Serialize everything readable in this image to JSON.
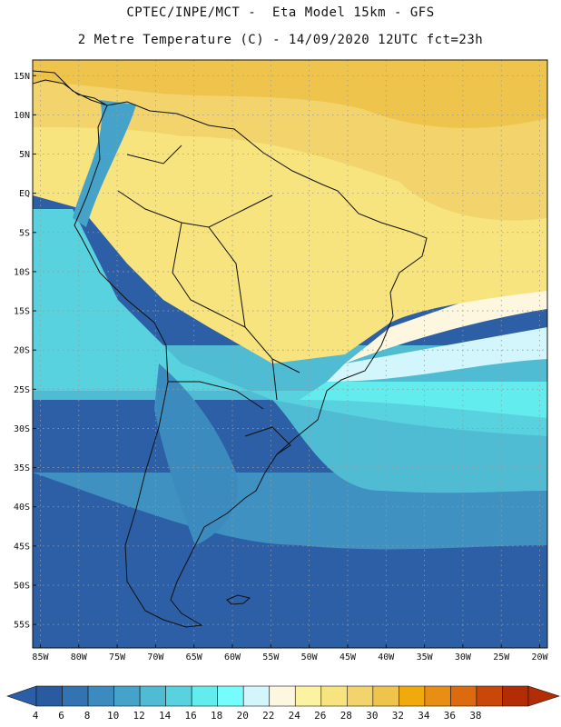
{
  "header": {
    "title": "CPTEC/INPE/MCT -  Eta Model 15km - GFS",
    "subtitle": "2 Metre Temperature (C) - 14/09/2020 12UTC fct=23h"
  },
  "map": {
    "lat_range": [
      -58,
      17
    ],
    "lon_range": [
      -86,
      -19
    ],
    "lat_ticks": [
      {
        "value": 15,
        "label": "15N"
      },
      {
        "value": 10,
        "label": "10N"
      },
      {
        "value": 5,
        "label": "5N"
      },
      {
        "value": 0,
        "label": "EQ"
      },
      {
        "value": -5,
        "label": "5S"
      },
      {
        "value": -10,
        "label": "10S"
      },
      {
        "value": -15,
        "label": "15S"
      },
      {
        "value": -20,
        "label": "20S"
      },
      {
        "value": -25,
        "label": "25S"
      },
      {
        "value": -30,
        "label": "30S"
      },
      {
        "value": -35,
        "label": "35S"
      },
      {
        "value": -40,
        "label": "40S"
      },
      {
        "value": -45,
        "label": "45S"
      },
      {
        "value": -50,
        "label": "50S"
      },
      {
        "value": -55,
        "label": "55S"
      }
    ],
    "lon_ticks": [
      {
        "value": -85,
        "label": "85W"
      },
      {
        "value": -80,
        "label": "80W"
      },
      {
        "value": -75,
        "label": "75W"
      },
      {
        "value": -70,
        "label": "70W"
      },
      {
        "value": -65,
        "label": "65W"
      },
      {
        "value": -60,
        "label": "60W"
      },
      {
        "value": -55,
        "label": "55W"
      },
      {
        "value": -50,
        "label": "50W"
      },
      {
        "value": -45,
        "label": "45W"
      },
      {
        "value": -40,
        "label": "40W"
      },
      {
        "value": -35,
        "label": "35W"
      },
      {
        "value": -30,
        "label": "30W"
      },
      {
        "value": -25,
        "label": "25W"
      },
      {
        "value": -20,
        "label": "20W"
      }
    ]
  },
  "colorbar": {
    "values": [
      "4",
      "6",
      "8",
      "10",
      "12",
      "14",
      "16",
      "18",
      "20",
      "22",
      "24",
      "26",
      "28",
      "30",
      "32",
      "34",
      "36",
      "38"
    ],
    "colors": [
      "#2a5aa0",
      "#3473b1",
      "#3c8bbe",
      "#45a3c9",
      "#4fbcd4",
      "#58d2de",
      "#63ecee",
      "#75fcfc",
      "#d2f6fb",
      "#fdf7df",
      "#fbf2a2",
      "#f8e47e",
      "#f3d36b",
      "#efc44c",
      "#f0aa0c",
      "#e88e14",
      "#dd6a0e",
      "#c94708",
      "#b22d06"
    ],
    "below_color": "#2b5ea6",
    "above_color": "#b22d06"
  },
  "colors": {
    "land_line": "#111111",
    "grid_line": "#9a9a9a"
  }
}
